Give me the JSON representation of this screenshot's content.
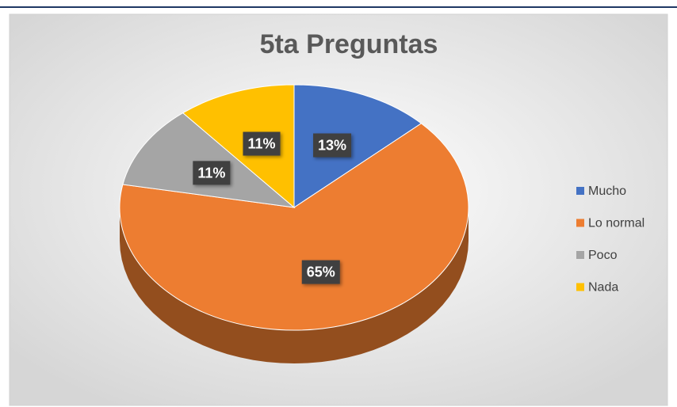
{
  "chart_data": {
    "type": "pie",
    "title": "5ta Preguntas",
    "categories": [
      "Mucho",
      "Lo normal",
      "Poco",
      "Nada"
    ],
    "values": [
      13,
      65,
      11,
      11
    ],
    "value_labels": [
      "13%",
      "65%",
      "11%",
      "11%"
    ],
    "colors": [
      "#4472c4",
      "#ed7d31",
      "#a5a5a5",
      "#ffc000"
    ],
    "legend": "right"
  }
}
